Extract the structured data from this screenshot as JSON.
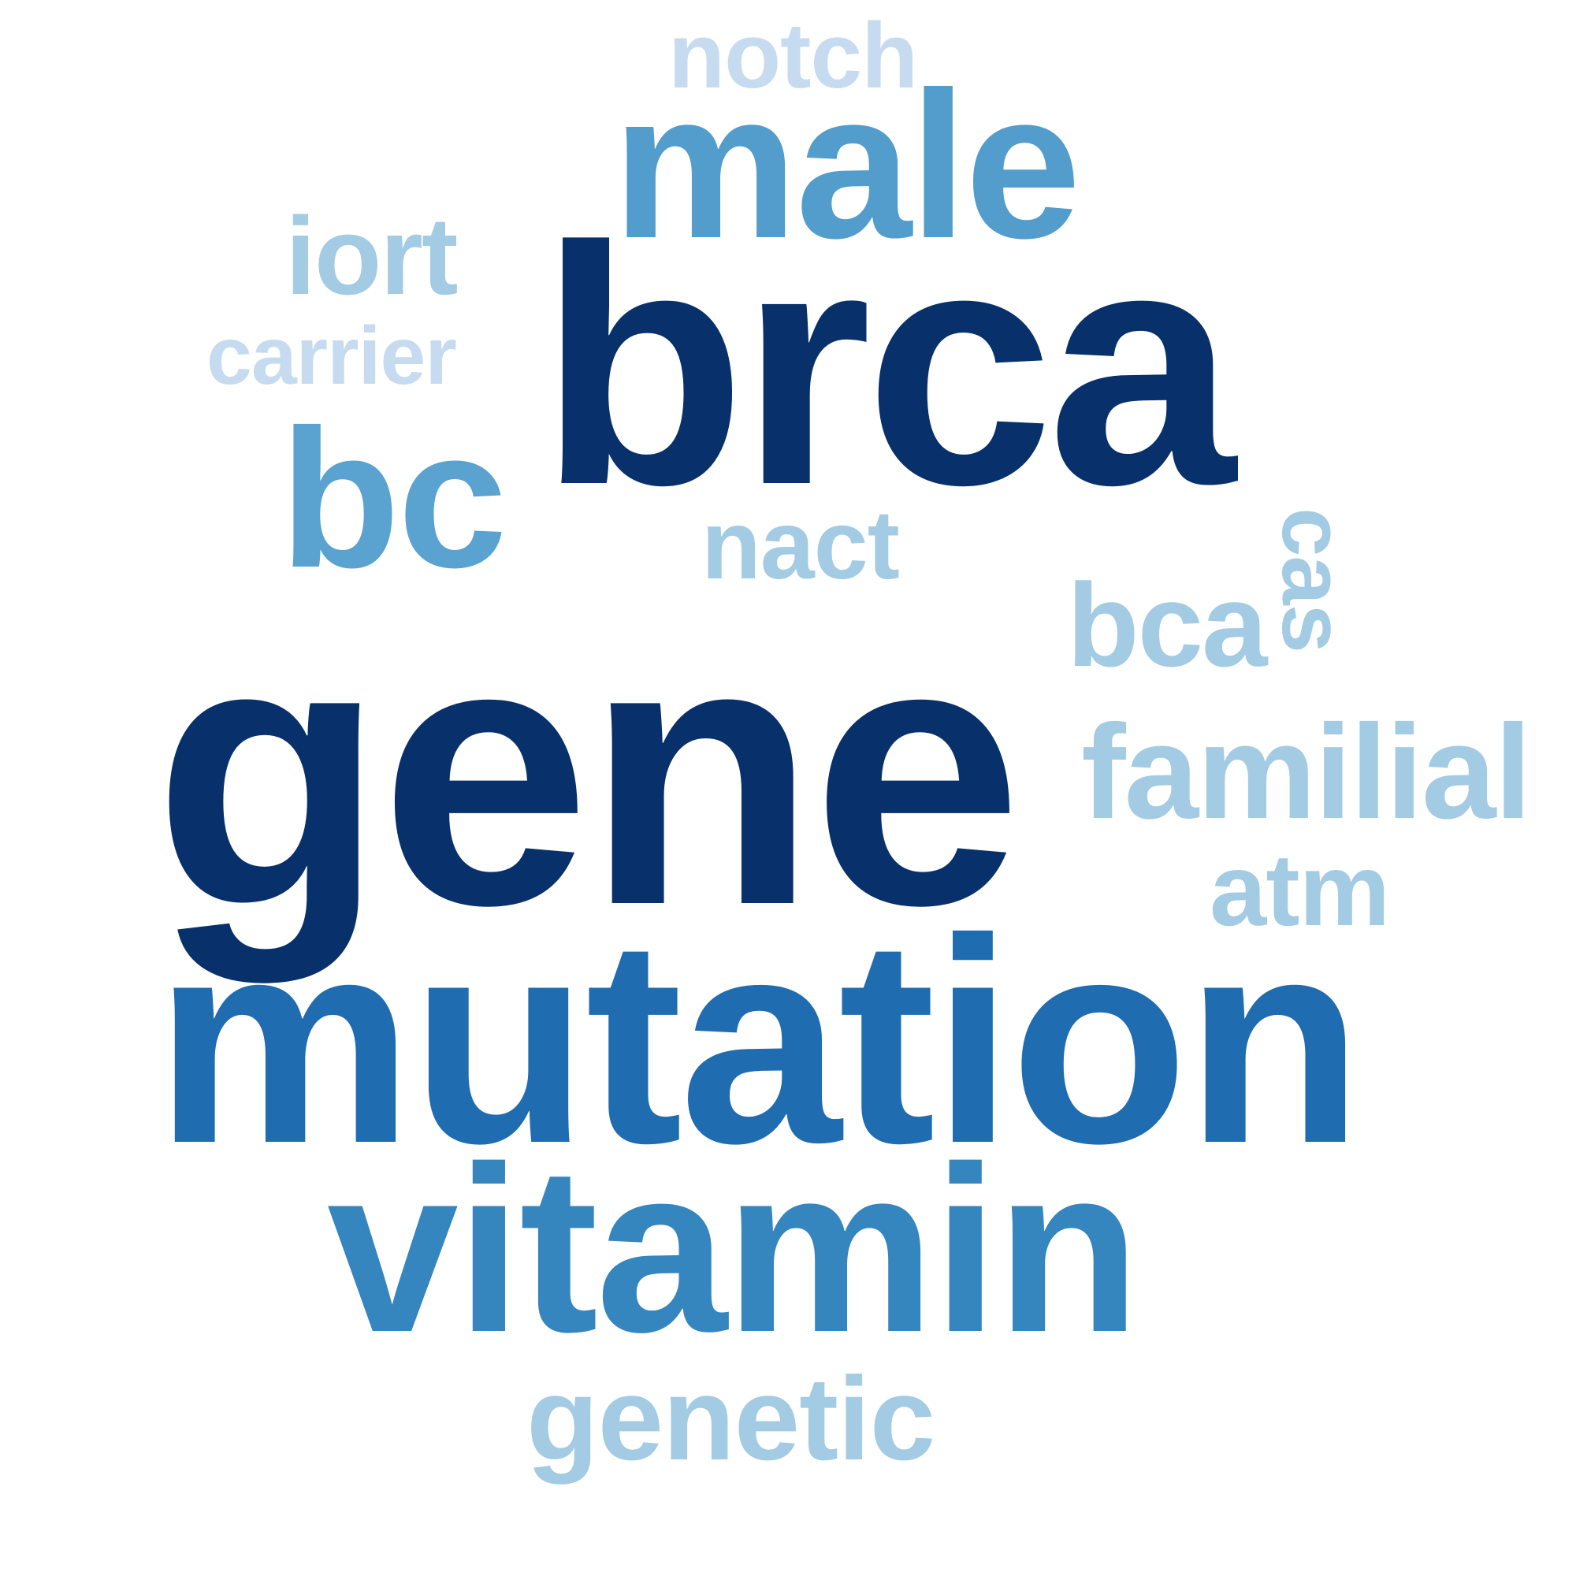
{
  "words": [
    {
      "id": "w-brca",
      "text": "brca",
      "color": "#08306b"
    },
    {
      "id": "w-gene",
      "text": "gene",
      "color": "#08306b"
    },
    {
      "id": "w-mutation",
      "text": "mutation",
      "color": "#1f6cb0"
    },
    {
      "id": "w-vitamin",
      "text": "vitamin",
      "color": "#3585bf"
    },
    {
      "id": "w-male",
      "text": "male",
      "color": "#529dcc"
    },
    {
      "id": "w-bc",
      "text": "bc",
      "color": "#5aa2cf"
    },
    {
      "id": "w-iort",
      "text": "iort",
      "color": "#a3cbe3"
    },
    {
      "id": "w-carrier",
      "text": "carrier",
      "color": "#c6dbef"
    },
    {
      "id": "w-notch",
      "text": "notch",
      "color": "#c6dbef"
    },
    {
      "id": "w-nact",
      "text": "nact",
      "color": "#a3cbe3"
    },
    {
      "id": "w-bca",
      "text": "bca",
      "color": "#a3cbe3"
    },
    {
      "id": "w-familial",
      "text": "familial",
      "color": "#a3cbe3"
    },
    {
      "id": "w-atm",
      "text": "atm",
      "color": "#a3cbe3"
    },
    {
      "id": "w-genetic",
      "text": "genetic",
      "color": "#a3cbe3"
    },
    {
      "id": "w-cas",
      "text": "cas",
      "color": "#a3cbe3",
      "rotated": true
    }
  ]
}
